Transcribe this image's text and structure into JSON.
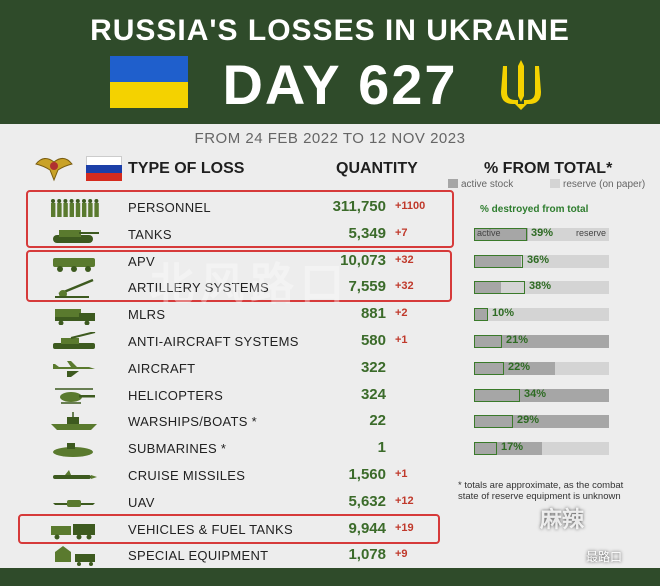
{
  "header": {
    "title": "RUSSIA'S LOSSES IN UKRAINE",
    "day_label": "DAY 627",
    "date_range": "FROM 24 FEB 2022 TO 12 NOV 2023"
  },
  "columns": {
    "type": "TYPE OF LOSS",
    "quantity": "QUANTITY",
    "percent": "% FROM TOTAL*"
  },
  "legend": {
    "active": "active stock",
    "reserve": "reserve (on paper)",
    "destroyed_title": "% destroyed from total",
    "active_inline": "active",
    "reserve_inline": "reserve"
  },
  "colors": {
    "header_bg": "#2f4b2a",
    "quantity": "#3b6b2a",
    "delta": "#c0392b",
    "highlight_box": "#d63a3a",
    "active_stock": "#a6a6a6",
    "reserve": "#d4d4d4"
  },
  "rows": [
    {
      "label": "PERSONNEL",
      "qty": "311,750",
      "delta": "+1100",
      "icon": "soldiers-icon"
    },
    {
      "label": "TANKS",
      "qty": "5,349",
      "delta": "+7",
      "icon": "tank-icon",
      "pct": "39%",
      "pct_value": 39,
      "active_fraction": 0.4
    },
    {
      "label": "APV",
      "qty": "10,073",
      "delta": "+32",
      "icon": "apv-icon",
      "pct": "36%",
      "pct_value": 36,
      "active_fraction": 0.35
    },
    {
      "label": "ARTILLERY SYSTEMS",
      "qty": "7,559",
      "delta": "+32",
      "icon": "artillery-icon",
      "pct": "38%",
      "pct_value": 38,
      "active_fraction": 0.2
    },
    {
      "label": "MLRS",
      "qty": "881",
      "delta": "+2",
      "icon": "mlrs-icon",
      "pct": "10%",
      "pct_value": 10,
      "active_fraction": 0.1
    },
    {
      "label": "ANTI-AIRCRAFT SYSTEMS",
      "qty": "580",
      "delta": "+1",
      "icon": "anti-aircraft-icon",
      "pct": "21%",
      "pct_value": 21,
      "active_fraction": 1.0
    },
    {
      "label": "AIRCRAFT",
      "qty": "322",
      "delta": "",
      "icon": "aircraft-icon",
      "pct": "22%",
      "pct_value": 22,
      "active_fraction": 0.6
    },
    {
      "label": "HELICOPTERS",
      "qty": "324",
      "delta": "",
      "icon": "helicopter-icon",
      "pct": "34%",
      "pct_value": 34,
      "active_fraction": 1.0
    },
    {
      "label": "WARSHIPS/BOATS *",
      "qty": "22",
      "delta": "",
      "icon": "warship-icon",
      "pct": "29%",
      "pct_value": 29,
      "active_fraction": 1.0
    },
    {
      "label": "SUBMARINES *",
      "qty": "1",
      "delta": "",
      "icon": "submarine-icon",
      "pct": "17%",
      "pct_value": 17,
      "active_fraction": 0.5
    },
    {
      "label": "CRUISE MISSILES",
      "qty": "1,560",
      "delta": "+1",
      "icon": "cruise-missile-icon"
    },
    {
      "label": "UAV",
      "qty": "5,632",
      "delta": "+12",
      "icon": "uav-icon"
    },
    {
      "label": "VEHICLES & FUEL TANKS",
      "qty": "9,944",
      "delta": "+19",
      "icon": "vehicles-icon"
    },
    {
      "label": "SPECIAL EQUIPMENT",
      "qty": "1,078",
      "delta": "+9",
      "icon": "special-equipment-icon"
    }
  ],
  "footnote": "* totals are approximate, as the combat state of reserve equipment is unknown",
  "watermarks": {
    "center": "北风路口",
    "corner": "麻辣",
    "handle": "最路口"
  }
}
